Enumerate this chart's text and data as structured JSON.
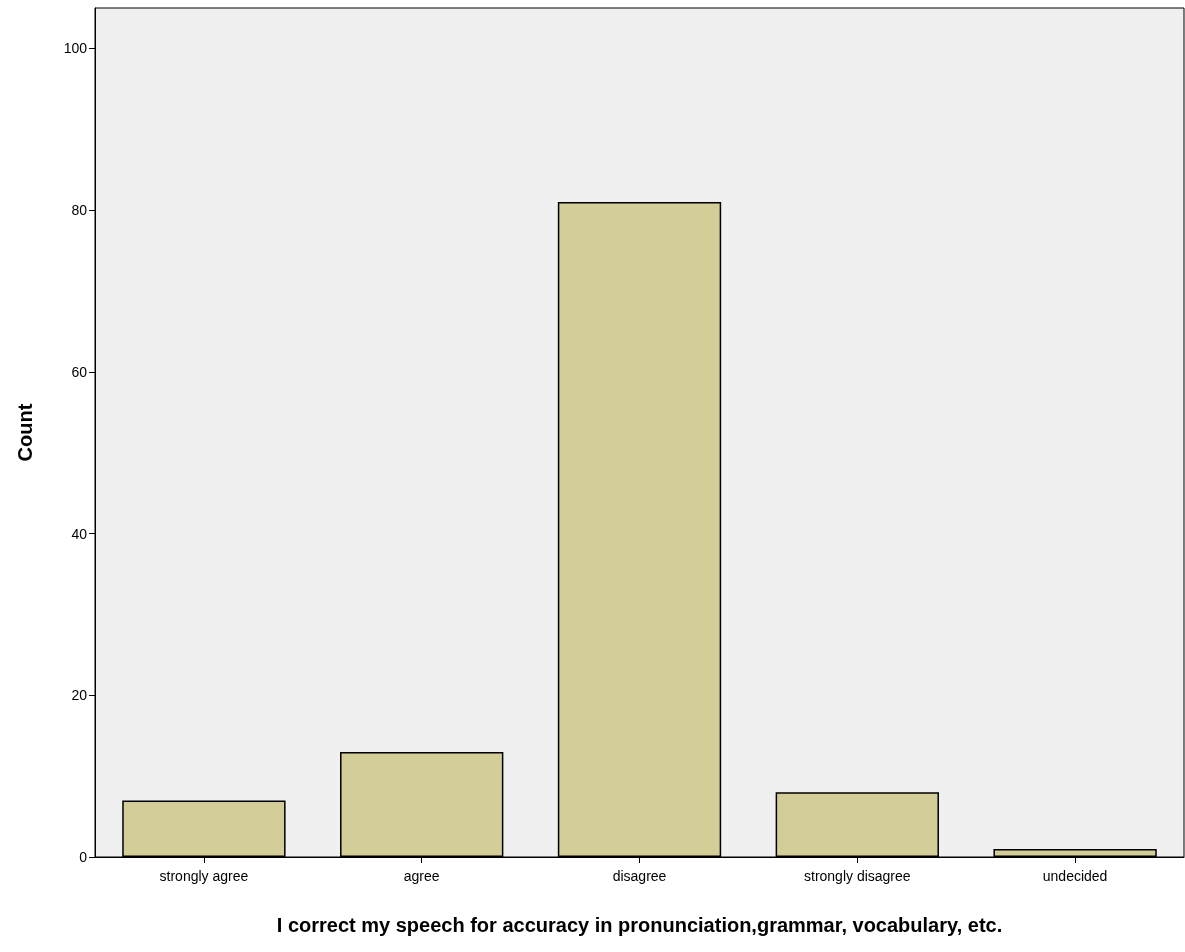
{
  "chart_data": {
    "type": "bar",
    "xlabel": "I correct my speech for accuracy in pronunciation,grammar, vocabulary, etc.",
    "ylabel": "Count",
    "categories": [
      "strongly agree",
      "agree",
      "disagree",
      "strongly disagree",
      "undecided"
    ],
    "values": [
      7,
      13,
      81,
      8,
      1
    ],
    "color": "#d3cd98",
    "ylim": [
      0,
      105
    ],
    "yticks": [
      0,
      20,
      40,
      60,
      80,
      100
    ],
    "grid": false
  }
}
